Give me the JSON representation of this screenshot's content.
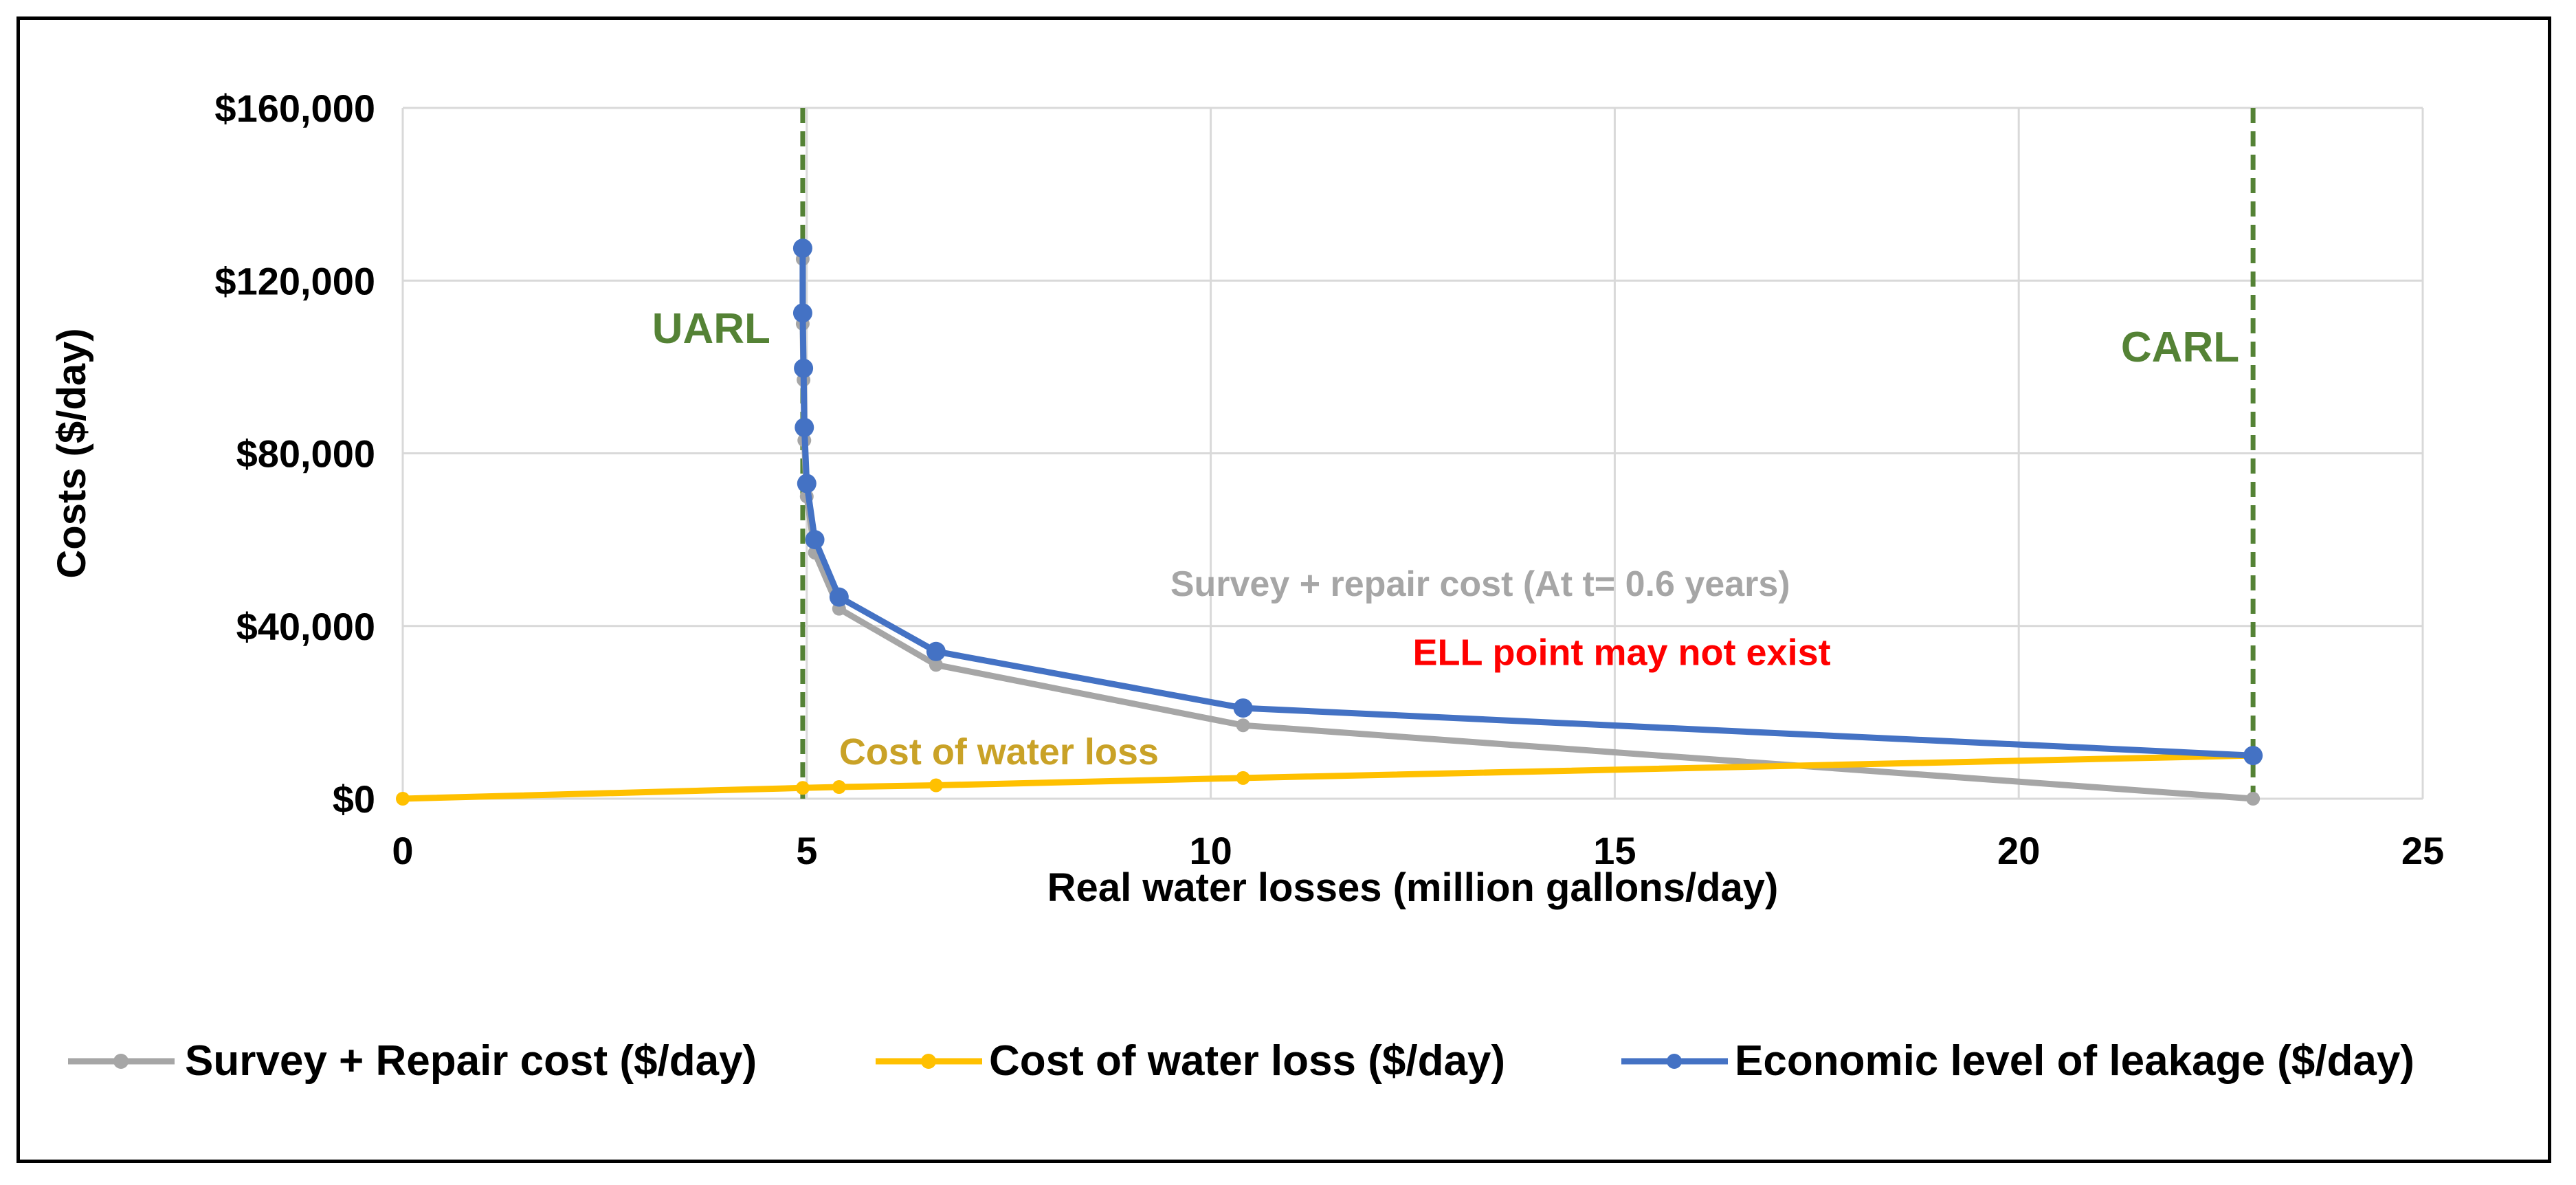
{
  "chart_data": {
    "type": "line",
    "xlabel": "Real water losses (million gallons/day)",
    "ylabel": "Costs ($/day)",
    "xlim": [
      0,
      25
    ],
    "ylim": [
      0,
      160000
    ],
    "x_ticks": [
      0,
      5,
      10,
      15,
      20,
      25
    ],
    "x_tick_labels": [
      "0",
      "5",
      "10",
      "15",
      "20",
      "25"
    ],
    "y_ticks": [
      0,
      40000,
      80000,
      120000,
      160000
    ],
    "y_tick_labels": [
      "$0",
      "$40,000",
      "$80,000",
      "$120,000",
      "$160,000"
    ],
    "grid": true,
    "legend_position": "bottom",
    "series": [
      {
        "name": "Survey + Repair cost ($/day)",
        "color": "#a6a6a6",
        "x": [
          4.95,
          4.95,
          4.96,
          4.97,
          5.0,
          5.1,
          5.4,
          6.6,
          10.4,
          22.9
        ],
        "y": [
          125000,
          110000,
          97000,
          83000,
          70000,
          57000,
          44000,
          31000,
          17000,
          0
        ]
      },
      {
        "name": "Cost of water loss ($/day)",
        "color": "#ffc000",
        "x": [
          0,
          4.95,
          5.4,
          6.6,
          10.4,
          22.9
        ],
        "y": [
          0,
          2500,
          2700,
          3100,
          4800,
          10000
        ]
      },
      {
        "name": "Economic level of leakage ($/day)",
        "color": "#4472c4",
        "x": [
          4.95,
          4.95,
          4.96,
          4.97,
          5.0,
          5.1,
          5.4,
          6.6,
          10.4,
          22.9
        ],
        "y": [
          127500,
          112500,
          99700,
          86000,
          73000,
          60000,
          46700,
          34100,
          21000,
          10000
        ]
      }
    ],
    "vlines": [
      {
        "x": 4.95,
        "label": "UARL",
        "color": "#548235"
      },
      {
        "x": 22.9,
        "label": "CARL",
        "color": "#548235"
      }
    ],
    "annotations": [
      {
        "text": "Survey + repair cost (At t= 0.6 years)",
        "x": 9.5,
        "y": 47000,
        "color": "#a6a6a6"
      },
      {
        "text": "ELL point may not exist",
        "x": 12.5,
        "y": 31000,
        "color": "#ff0000"
      },
      {
        "text": "Cost of water loss",
        "x": 5.4,
        "y": 8000,
        "color": "#c9a227"
      }
    ]
  }
}
